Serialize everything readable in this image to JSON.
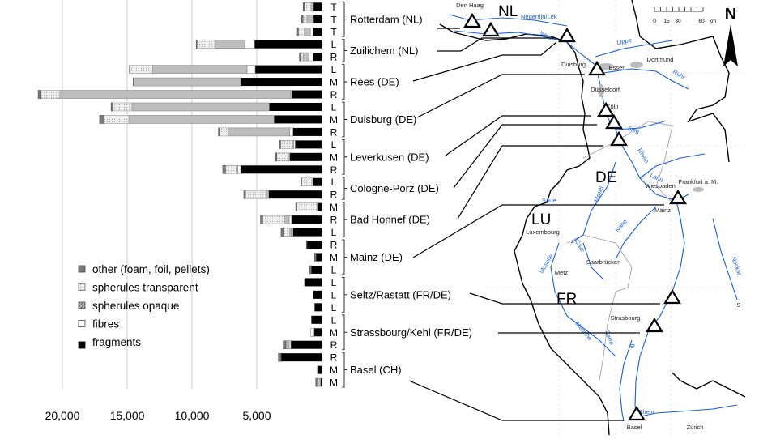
{
  "chart_data": {
    "type": "bar",
    "orientation": "horizontal-stacked",
    "xlim": [
      22000,
      0
    ],
    "x_ticks": [
      "20,000",
      "15,000",
      "10,000",
      "5,000"
    ],
    "x_tick_values": [
      20000,
      15000,
      10000,
      5000
    ],
    "grid": true,
    "legend_placement": "bottom-left",
    "series": [
      {
        "name": "other (foam, foil, pellets)",
        "color": "#7a7a7a"
      },
      {
        "name": "spherules transparent",
        "color": "#e8e8e8"
      },
      {
        "name": "spherules opaque",
        "color": "#bdbdbd"
      },
      {
        "name": "fibres",
        "color": "#ffffff"
      },
      {
        "name": "fragments",
        "color": "#000000"
      }
    ],
    "sites": [
      {
        "name": "Rotterdam (NL)",
        "rows": [
          0,
          2
        ]
      },
      {
        "name": "Zuilichem (NL)",
        "rows": [
          3,
          4
        ]
      },
      {
        "name": "Rees (DE)",
        "rows": [
          5,
          7
        ]
      },
      {
        "name": "Duisburg (DE)",
        "rows": [
          8,
          10
        ]
      },
      {
        "name": "Leverkusen (DE)",
        "rows": [
          11,
          13
        ]
      },
      {
        "name": "Cologne-Porz (DE)",
        "rows": [
          14,
          15
        ]
      },
      {
        "name": "Bad Honnef (DE)",
        "rows": [
          16,
          18
        ]
      },
      {
        "name": "Mainz (DE)",
        "rows": [
          19,
          21
        ]
      },
      {
        "name": "Seltz/Rastatt (FR/DE)",
        "rows": [
          22,
          24
        ]
      },
      {
        "name": "Strassbourg/Kehl (FR/DE)",
        "rows": [
          25,
          27
        ]
      },
      {
        "name": "Basel (CH)",
        "rows": [
          28,
          30
        ]
      }
    ],
    "bars": [
      {
        "pos": "T",
        "fragments": 625,
        "fibres": 0,
        "spherules_opaque": 200,
        "spherules_transparent": 500,
        "other": 100
      },
      {
        "pos": "T",
        "fragments": 625,
        "fibres": 0,
        "spherules_opaque": 500,
        "spherules_transparent": 300,
        "other": 125
      },
      {
        "pos": "T",
        "fragments": 670,
        "fibres": 200,
        "spherules_opaque": 460,
        "spherules_transparent": 460,
        "other": 80
      },
      {
        "pos": "L",
        "fragments": 5170,
        "fibres": 750,
        "spherules_opaque": 2290,
        "spherules_transparent": 1420,
        "other": 40
      },
      {
        "pos": "R",
        "fragments": 670,
        "fibres": 290,
        "spherules_opaque": 460,
        "spherules_transparent": 210,
        "other": 80
      },
      {
        "pos": "L",
        "fragments": 5125,
        "fibres": 625,
        "spherules_opaque": 7290,
        "spherules_transparent": 1750,
        "other": 40
      },
      {
        "pos": "M",
        "fragments": 6210,
        "fibres": 80,
        "spherules_opaque": 8170,
        "spherules_transparent": 0,
        "other": 80
      },
      {
        "pos": "R",
        "fragments": 2330,
        "fibres": 80,
        "spherules_opaque": 17790,
        "spherules_transparent": 1500,
        "other": 170
      },
      {
        "pos": "L",
        "fragments": 4040,
        "fibres": 0,
        "spherules_opaque": 10580,
        "spherules_transparent": 1540,
        "other": 80
      },
      {
        "pos": "M",
        "fragments": 3670,
        "fibres": 0,
        "spherules_opaque": 11210,
        "spherules_transparent": 1920,
        "other": 330
      },
      {
        "pos": "R",
        "fragments": 2210,
        "fibres": 250,
        "spherules_opaque": 4750,
        "spherules_transparent": 670,
        "other": 80
      },
      {
        "pos": "L",
        "fragments": 2040,
        "fibres": 125,
        "spherules_opaque": 80,
        "spherules_transparent": 920,
        "other": 80
      },
      {
        "pos": "M",
        "fragments": 2460,
        "fibres": 0,
        "spherules_opaque": 125,
        "spherules_transparent": 875,
        "other": 80
      },
      {
        "pos": "R",
        "fragments": 6250,
        "fibres": 210,
        "spherules_opaque": 125,
        "spherules_transparent": 830,
        "other": 210
      },
      {
        "pos": "L",
        "fragments": 670,
        "fibres": 80,
        "spherules_opaque": 0,
        "spherules_transparent": 790,
        "other": 40
      },
      {
        "pos": "R",
        "fragments": 4080,
        "fibres": 0,
        "spherules_opaque": 170,
        "spherules_transparent": 1625,
        "other": 125
      },
      {
        "pos": "M",
        "fragments": 330,
        "fibres": 40,
        "spherules_opaque": 0,
        "spherules_transparent": 1540,
        "other": 80
      },
      {
        "pos": "R",
        "fragments": 2330,
        "fibres": 170,
        "spherules_opaque": 375,
        "spherules_transparent": 1670,
        "other": 170
      },
      {
        "pos": "L",
        "fragments": 2210,
        "fibres": 125,
        "spherules_opaque": 125,
        "spherules_transparent": 500,
        "other": 170
      },
      {
        "pos": "R",
        "fragments": 1130,
        "fibres": 0,
        "spherules_opaque": 0,
        "spherules_transparent": 0,
        "other": 40
      },
      {
        "pos": "M",
        "fragments": 420,
        "fibres": 0,
        "spherules_opaque": 0,
        "spherules_transparent": 0,
        "other": 120
      },
      {
        "pos": "L",
        "fragments": 790,
        "fibres": 0,
        "spherules_opaque": 0,
        "spherules_transparent": 0,
        "other": 125
      },
      {
        "pos": "L",
        "fragments": 1330,
        "fibres": 0,
        "spherules_opaque": 0,
        "spherules_transparent": 0,
        "other": 0
      },
      {
        "pos": "L",
        "fragments": 625,
        "fibres": 0,
        "spherules_opaque": 0,
        "spherules_transparent": 0,
        "other": 0
      },
      {
        "pos": "L",
        "fragments": 540,
        "fibres": 0,
        "spherules_opaque": 0,
        "spherules_transparent": 0,
        "other": 0
      },
      {
        "pos": "L",
        "fragments": 790,
        "fibres": 0,
        "spherules_opaque": 0,
        "spherules_transparent": 0,
        "other": 0
      },
      {
        "pos": "M",
        "fragments": 580,
        "fibres": 250,
        "spherules_opaque": 0,
        "spherules_transparent": 0,
        "other": 0
      },
      {
        "pos": "R",
        "fragments": 2375,
        "fibres": 125,
        "spherules_opaque": 250,
        "spherules_transparent": 0,
        "other": 210
      },
      {
        "pos": "R",
        "fragments": 3125,
        "fibres": 0,
        "spherules_opaque": 0,
        "spherules_transparent": 0,
        "other": 210
      },
      {
        "pos": "M",
        "fragments": 330,
        "fibres": 0,
        "spherules_opaque": 0,
        "spherules_transparent": 0,
        "other": 0
      },
      {
        "pos": "M",
        "fragments": 80,
        "fibres": 0,
        "spherules_opaque": 290,
        "spherules_transparent": 0,
        "other": 80
      }
    ]
  },
  "map": {
    "countries": [
      "NL",
      "DE",
      "LU",
      "FR"
    ],
    "cities": [
      "Den Haag",
      "Duisburg",
      "Essen",
      "Dortmund",
      "Düsseldorf",
      "Köln",
      "Wiesbaden",
      "Frankfurt a. M.",
      "Mainz",
      "Luxembourg",
      "Saarbrücken",
      "Metz",
      "Strasbourg",
      "Basel",
      "Zürich",
      "S"
    ],
    "rivers": [
      "Nederrijn/Lek",
      "Waal",
      "Lippe",
      "Ruhr",
      "Sieg",
      "Rhein",
      "Lahn",
      "Saue",
      "Mosel",
      "Nahe",
      "Saar",
      "Neckar",
      "Moselle",
      "Meurthe",
      "Sarre",
      "Ill",
      "Rhein"
    ],
    "scale_labels": [
      "0",
      "15",
      "30",
      "60",
      "km"
    ],
    "north_label": "N",
    "border_color": "#000000",
    "river_color": "#1a5fd6"
  }
}
